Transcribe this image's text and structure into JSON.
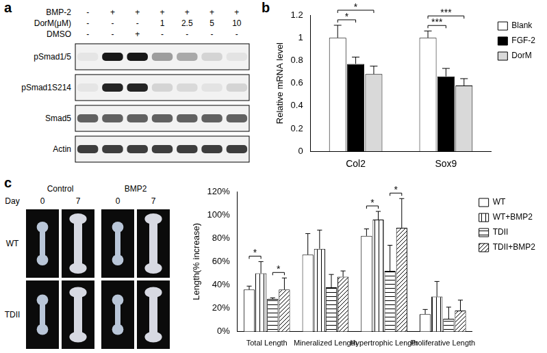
{
  "panel_labels": [
    "a",
    "b",
    "c"
  ],
  "blot": {
    "conditions": [
      {
        "label": "BMP-2",
        "values": [
          "-",
          "+",
          "+",
          "+",
          "+",
          "+",
          "+"
        ]
      },
      {
        "label": "DorM(μM)",
        "values": [
          "-",
          "-",
          "-",
          "1",
          "2.5",
          "5",
          "10"
        ]
      },
      {
        "label": "DMSO",
        "values": [
          "-",
          "-",
          "+",
          "-",
          "-",
          "-",
          "-"
        ]
      }
    ],
    "bands": [
      {
        "label": "pSmad1/5",
        "intensity": [
          0.05,
          0.9,
          0.9,
          0.35,
          0.3,
          0.12,
          0.06
        ]
      },
      {
        "label": "pSmad1S214",
        "intensity": [
          0.05,
          0.85,
          0.85,
          0.12,
          0.1,
          0.06,
          0.12
        ]
      },
      {
        "label": "Smad5",
        "intensity": [
          0.6,
          0.6,
          0.6,
          0.6,
          0.6,
          0.6,
          0.6
        ]
      },
      {
        "label": "Actin",
        "intensity": [
          0.75,
          0.75,
          0.75,
          0.75,
          0.75,
          0.75,
          0.75
        ]
      }
    ]
  },
  "photos": {
    "columns": [
      "Control",
      "BMP2"
    ],
    "day_label": "Day",
    "days": [
      "0",
      "7"
    ],
    "rows": [
      "WT",
      "TDII"
    ]
  },
  "chart_data": [
    {
      "type": "bar",
      "categories": [
        "Col2",
        "Sox9"
      ],
      "series": [
        {
          "name": "Blank",
          "color": "#ffffff",
          "values": [
            1.0,
            1.0
          ],
          "errors": [
            0.11,
            0.06
          ]
        },
        {
          "name": "FGF-2",
          "color": "#000000",
          "values": [
            0.77,
            0.66
          ],
          "errors": [
            0.06,
            0.07
          ]
        },
        {
          "name": "DorM",
          "color": "#d9d9d9",
          "values": [
            0.68,
            0.58
          ],
          "errors": [
            0.07,
            0.06
          ]
        }
      ],
      "ylabel": "Relative mRNA level",
      "ylim": [
        0,
        1.2
      ],
      "yticks": [
        0,
        0.2,
        0.4,
        0.6,
        0.8,
        1,
        1.2
      ],
      "grid": false,
      "legend": "upper right",
      "significance": [
        {
          "category": "Col2",
          "from": "Blank",
          "to": "FGF-2",
          "label": "*"
        },
        {
          "category": "Col2",
          "from": "Blank",
          "to": "DorM",
          "label": "*"
        },
        {
          "category": "Sox9",
          "from": "Blank",
          "to": "FGF-2",
          "label": "***"
        },
        {
          "category": "Sox9",
          "from": "Blank",
          "to": "DorM",
          "label": "***"
        }
      ]
    },
    {
      "type": "bar",
      "categories": [
        "Total Length",
        "Mineralized Length",
        "Hypertrophic Length",
        "Proliferative Length"
      ],
      "series": [
        {
          "name": "WT",
          "color": "#ffffff",
          "values": [
            36,
            66,
            82,
            15
          ],
          "errors": [
            3,
            18,
            6,
            4
          ]
        },
        {
          "name": "WT+BMP2",
          "color": "#ffffff",
          "values": [
            50,
            71,
            96,
            30
          ],
          "errors": [
            10,
            16,
            7,
            13
          ]
        },
        {
          "name": "TDII",
          "color": "#ffffff",
          "values": [
            28,
            38,
            52,
            11
          ],
          "errors": [
            1,
            11,
            22,
            10
          ]
        },
        {
          "name": "TDII+BMP2",
          "color": "#ffffff",
          "values": [
            36,
            47,
            89,
            18
          ],
          "errors": [
            10,
            5,
            25,
            9
          ]
        }
      ],
      "ylabel": "Length(% increase)",
      "ylim": [
        0,
        120
      ],
      "yticks": [
        {
          "value": 0,
          "label": "0%"
        },
        {
          "value": 20,
          "label": "20%"
        },
        {
          "value": 40,
          "label": "40%"
        },
        {
          "value": 60,
          "label": "60%"
        },
        {
          "value": 80,
          "label": "80%"
        },
        {
          "value": 100,
          "label": "100%"
        },
        {
          "value": 120,
          "label": "120%"
        }
      ],
      "grid": false,
      "legend": "upper right",
      "significance": [
        {
          "category": "Total Length",
          "from": "WT",
          "to": "WT+BMP2",
          "label": "*"
        },
        {
          "category": "Total Length",
          "from": "TDII",
          "to": "TDII+BMP2",
          "label": "*"
        },
        {
          "category": "Hypertrophic Length",
          "from": "WT",
          "to": "WT+BMP2",
          "label": "*"
        },
        {
          "category": "Hypertrophic Length",
          "from": "TDII",
          "to": "TDII+BMP2",
          "label": "*"
        }
      ]
    }
  ]
}
